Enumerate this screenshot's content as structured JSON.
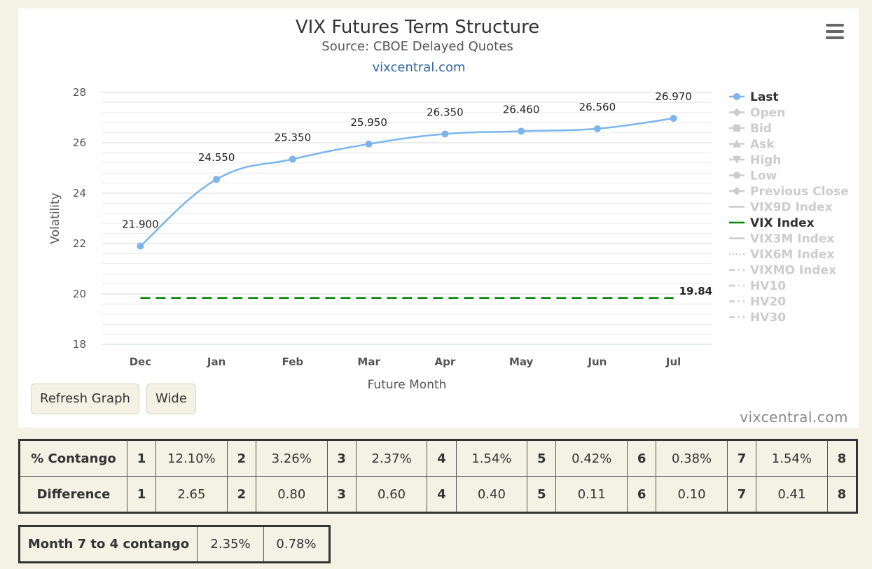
{
  "chart": {
    "title": "VIX Futures Term Structure",
    "subtitle": "Source: CBOE Delayed Quotes",
    "link": "vixcentral.com",
    "credit": "vixcentral.com"
  },
  "chart_data": {
    "type": "line",
    "title": "VIX Futures Term Structure",
    "subtitle": "Source: CBOE Delayed Quotes",
    "xlabel": "Future Month",
    "ylabel": "Volatility",
    "categories": [
      "Dec",
      "Jan",
      "Feb",
      "Mar",
      "Apr",
      "May",
      "Jun",
      "Jul"
    ],
    "ylim": [
      18,
      28
    ],
    "yticks": [
      18,
      20,
      22,
      24,
      26,
      28
    ],
    "series": [
      {
        "name": "Last",
        "values": [
          21.9,
          24.55,
          25.35,
          25.95,
          26.35,
          26.46,
          26.56,
          26.97
        ],
        "labels": [
          "21.900",
          "24.550",
          "25.350",
          "25.950",
          "26.350",
          "26.460",
          "26.560",
          "26.970"
        ],
        "color": "#7cb5ec"
      },
      {
        "name": "VIX Index",
        "value": 19.84,
        "label": "19.84",
        "color": "#008000",
        "style": "dashed"
      }
    ],
    "legend": {
      "placement": "right",
      "items": [
        {
          "name": "Last",
          "active": true,
          "symbol": "circle"
        },
        {
          "name": "Open",
          "active": false,
          "symbol": "diamond"
        },
        {
          "name": "Bid",
          "active": false,
          "symbol": "square"
        },
        {
          "name": "Ask",
          "active": false,
          "symbol": "triangle"
        },
        {
          "name": "High",
          "active": false,
          "symbol": "triangle-down"
        },
        {
          "name": "Low",
          "active": false,
          "symbol": "circle"
        },
        {
          "name": "Previous Close",
          "active": false,
          "symbol": "diamond"
        },
        {
          "name": "VIX9D Index",
          "active": false,
          "symbol": "line"
        },
        {
          "name": "VIX Index",
          "active": true,
          "symbol": "line-green"
        },
        {
          "name": "VIX3M Index",
          "active": false,
          "symbol": "line"
        },
        {
          "name": "VIX6M Index",
          "active": false,
          "symbol": "dotted"
        },
        {
          "name": "VIXMO Index",
          "active": false,
          "symbol": "dashdot"
        },
        {
          "name": "HV10",
          "active": false,
          "symbol": "dashdot"
        },
        {
          "name": "HV20",
          "active": false,
          "symbol": "dashdot"
        },
        {
          "name": "HV30",
          "active": false,
          "symbol": "dashdot"
        }
      ]
    },
    "grid": true
  },
  "buttons": {
    "refresh": "Refresh Graph",
    "wide": "Wide"
  },
  "contango_table": {
    "rows": [
      {
        "label": "% Contango",
        "cells": [
          [
            "1",
            "12.10%"
          ],
          [
            "2",
            "3.26%"
          ],
          [
            "3",
            "2.37%"
          ],
          [
            "4",
            "1.54%"
          ],
          [
            "5",
            "0.42%"
          ],
          [
            "6",
            "0.38%"
          ],
          [
            "7",
            "1.54%"
          ],
          [
            "8",
            ""
          ]
        ]
      },
      {
        "label": "Difference",
        "cells": [
          [
            "1",
            "2.65"
          ],
          [
            "2",
            "0.80"
          ],
          [
            "3",
            "0.60"
          ],
          [
            "4",
            "0.40"
          ],
          [
            "5",
            "0.11"
          ],
          [
            "6",
            "0.10"
          ],
          [
            "7",
            "0.41"
          ],
          [
            "8",
            ""
          ]
        ]
      }
    ]
  },
  "month_table": {
    "label": "Month 7 to 4 contango",
    "v1": "2.35%",
    "v2": "0.78%"
  },
  "colors": {
    "background": "#f4f2e4",
    "last_series": "#7cb5ec",
    "vix_line": "#008000",
    "inactive_legend": "#cccccc"
  }
}
